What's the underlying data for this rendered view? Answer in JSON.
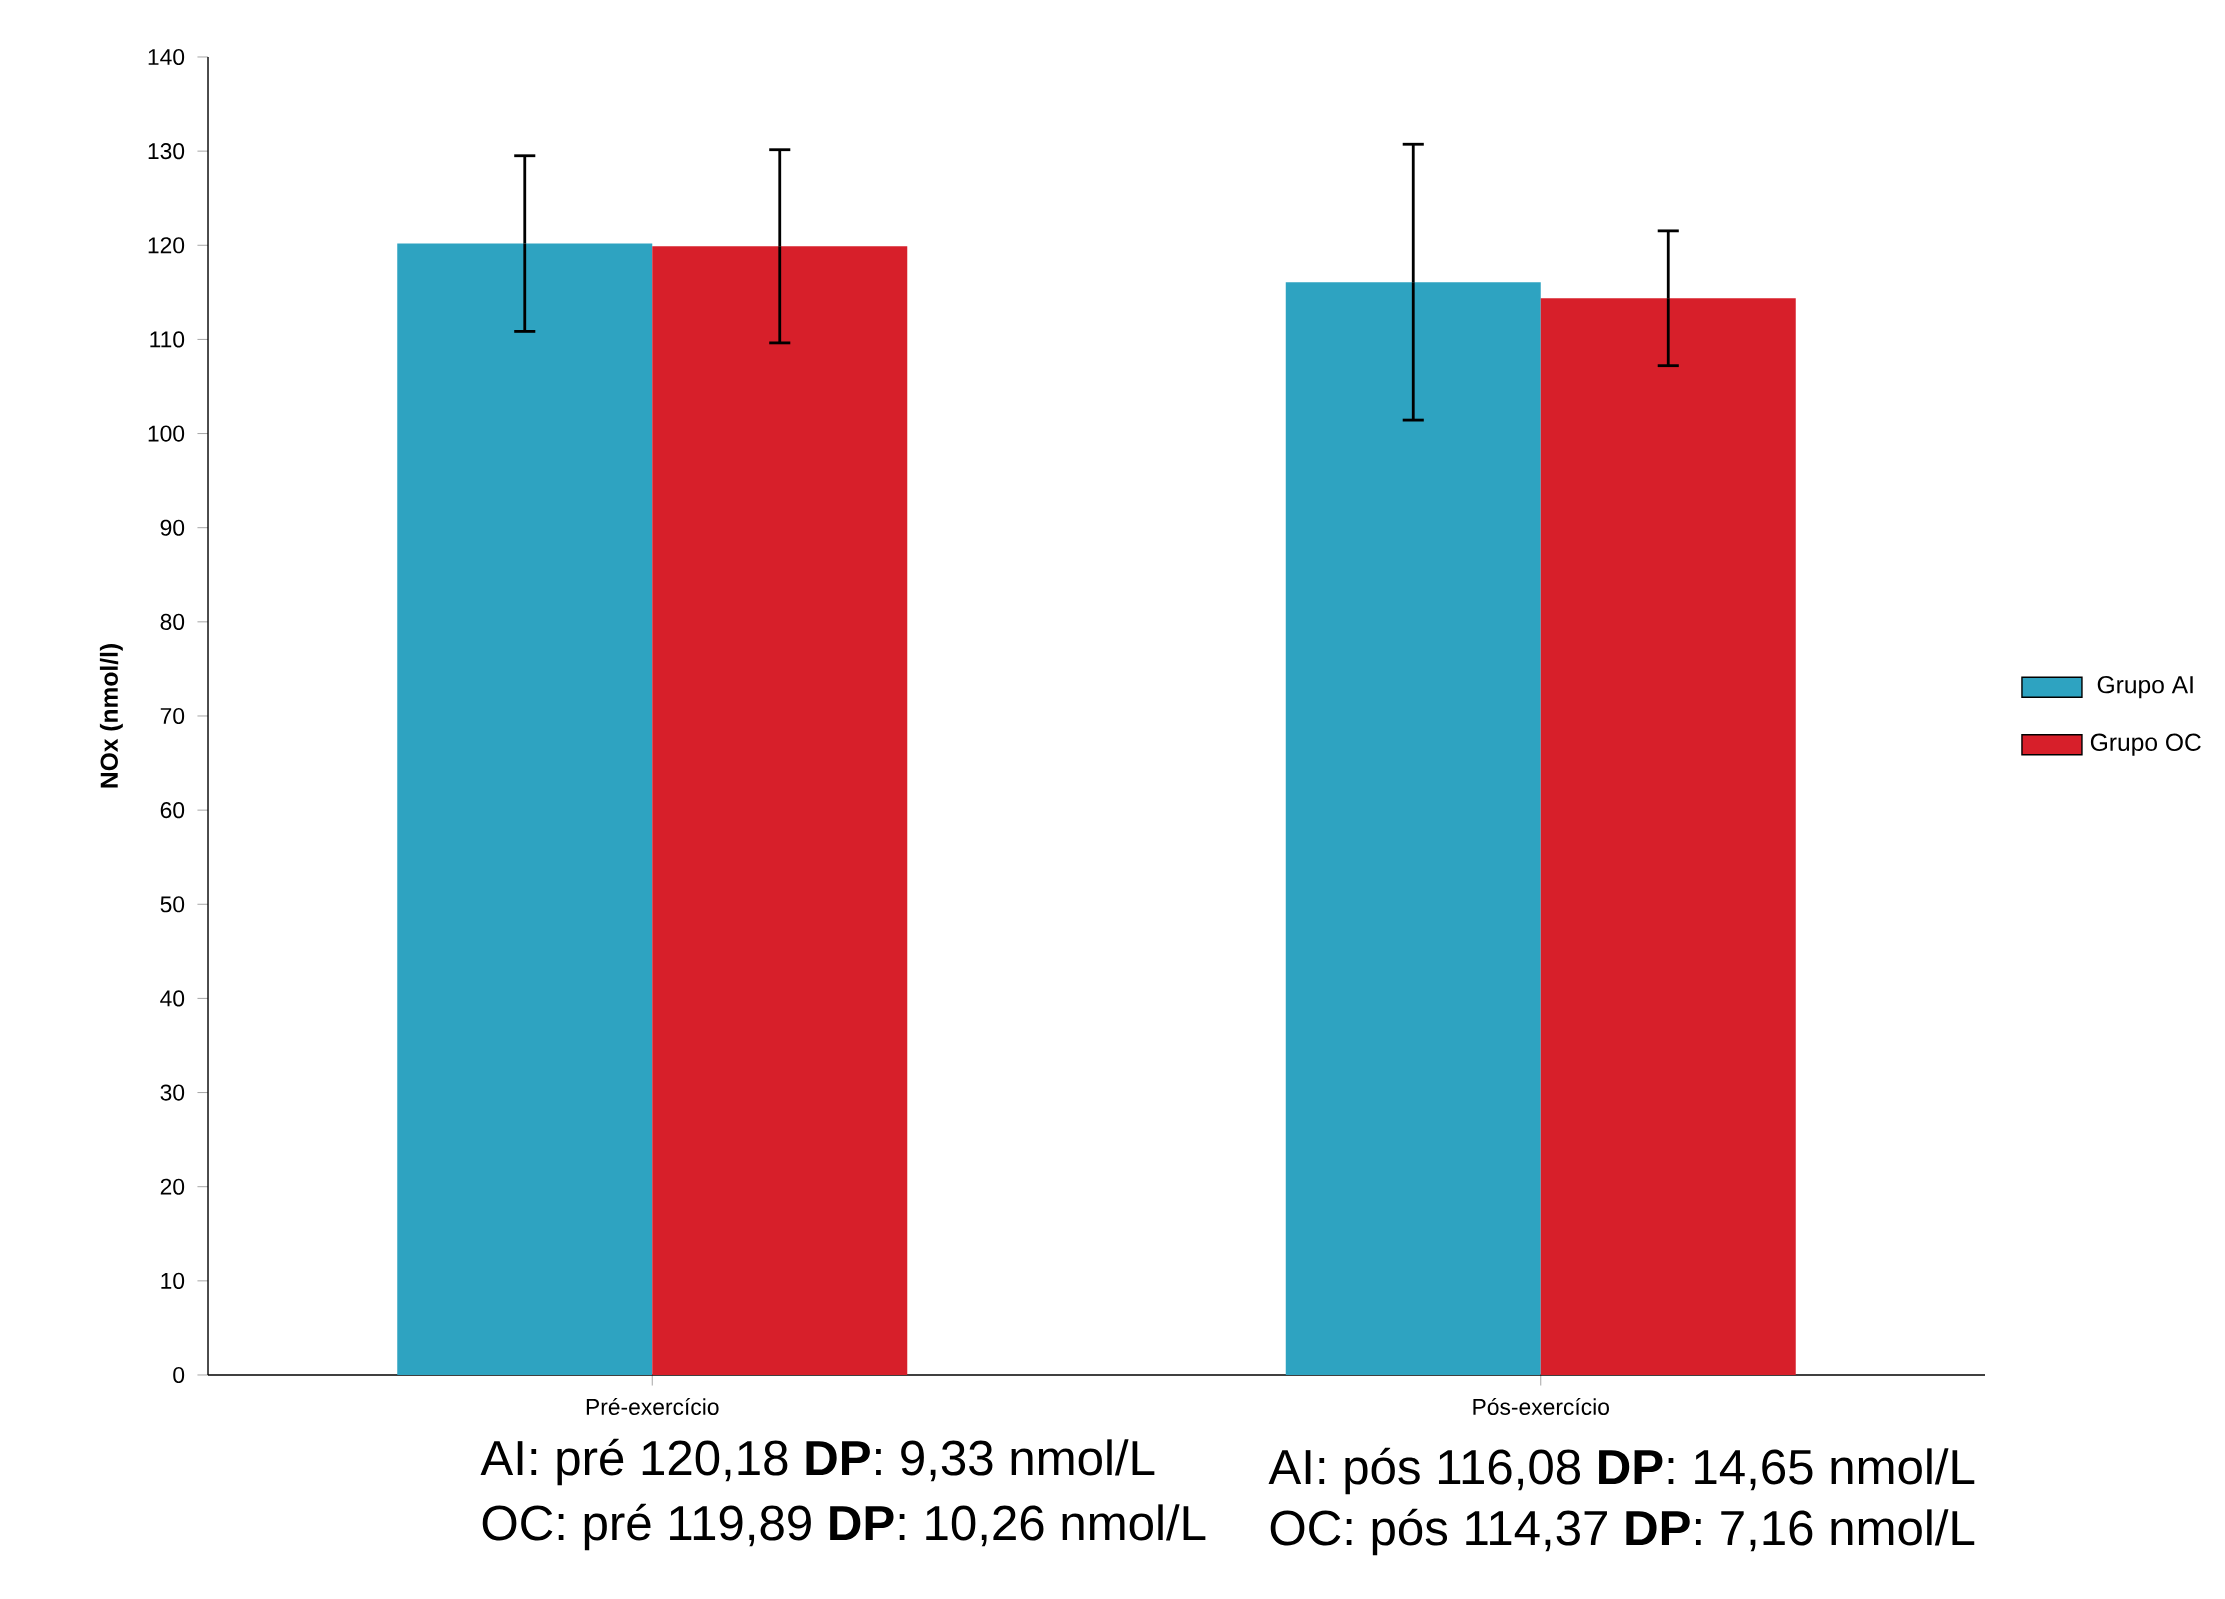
{
  "chart_data": {
    "type": "bar",
    "ylabel": "NOx (nmol/l)",
    "categories": [
      "Pré-exercício",
      "Pós-exercício"
    ],
    "series": [
      {
        "name": "Grupo AI",
        "color": "#2ea3c1",
        "values": [
          120.18,
          116.08
        ],
        "errors": [
          9.33,
          14.65
        ]
      },
      {
        "name": "Grupo OC",
        "color": "#d71f2a",
        "values": [
          119.89,
          114.37
        ],
        "errors": [
          10.26,
          7.16
        ]
      }
    ],
    "ylim": [
      0,
      140
    ],
    "yticks": [
      0,
      10,
      20,
      30,
      40,
      50,
      60,
      70,
      80,
      90,
      100,
      110,
      120,
      130,
      140
    ],
    "grid": false,
    "legend": "right",
    "annotations": [
      "AI: pré 120,18  **DP**: 9,33 nmol/L",
      "OC: pré 119,89 **DP**: 10,26 nmol/L",
      "AI: pós 116,08  **DP**: 14,65 nmol/L",
      "OC: pós 114,37 **DP**: 7,16 nmol/L"
    ]
  }
}
